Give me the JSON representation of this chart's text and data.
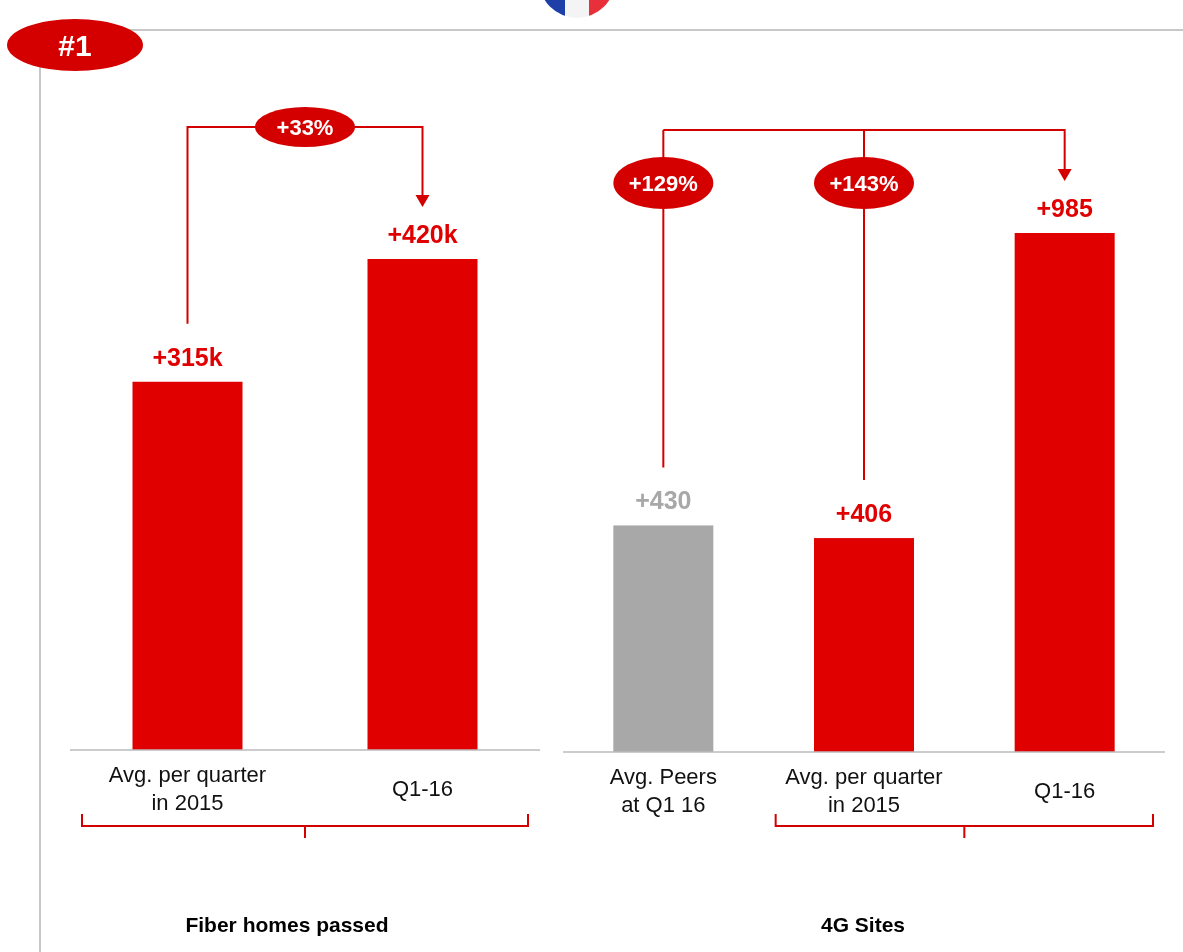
{
  "chart_data": [
    {
      "type": "bar",
      "title": "Fiber homes passed",
      "categories": [
        "Avg. per quarter\nin 2015",
        "Q1-16"
      ],
      "values": [
        315,
        420
      ],
      "value_labels": [
        "+315k",
        "+420k"
      ],
      "colors": [
        "#e00000",
        "#e00000"
      ],
      "annotations": [
        "#1",
        "+33%"
      ]
    },
    {
      "type": "bar",
      "title": "4G Sites",
      "categories": [
        "Avg. Peers\nat Q1 16",
        "Avg. per quarter\nin 2015",
        "Q1-16"
      ],
      "values": [
        430,
        406,
        985
      ],
      "value_labels": [
        "+430",
        "+406",
        "+985"
      ],
      "colors": [
        "#a8a8a8",
        "#e00000",
        "#e00000"
      ],
      "annotations": [
        "+129%",
        "+143%"
      ]
    }
  ]
}
